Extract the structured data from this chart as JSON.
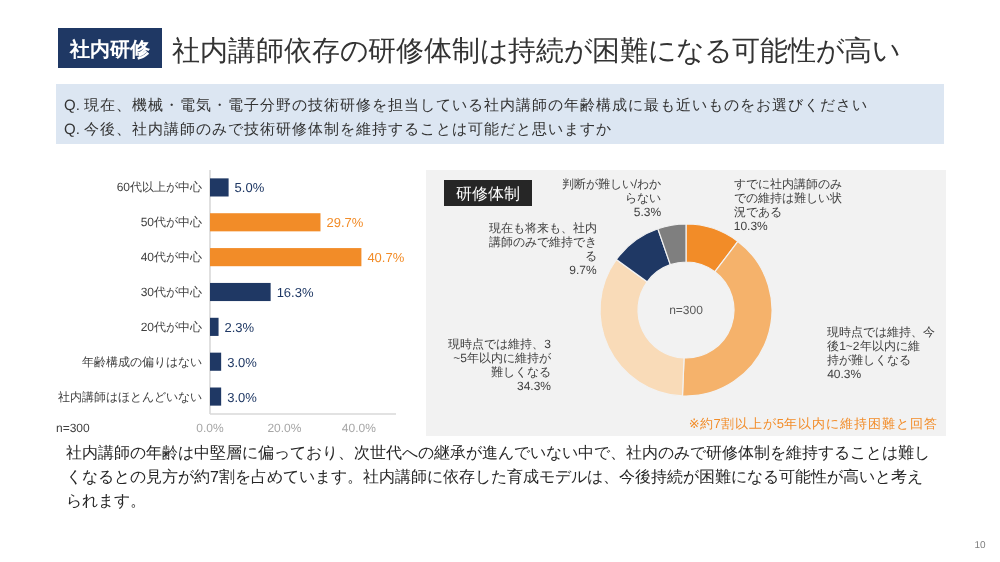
{
  "chart_data": [
    {
      "type": "bar",
      "orientation": "horizontal",
      "title": "社内講師依存の研修体制は持続が困難になる可能性が高い",
      "subtitle": "Q. 現在、機械・電気・電子分野の技術研修を担当している社内講師の年齢構成に最も近いものをお選びください",
      "annotations": [
        "社内研修",
        "n=300",
        "社内講師の年齢は中堅層に偏っており、次世代への継承が進んでいない中で、社内のみで研修体制を維持することは難しくなるとの見方が約7割を占めています。社内講師に依存した育成モデルは、今後持続が困難になる可能性が高いと考えられます。",
        "10",
        "Q. 今後、社内講師のみで技術研修体制を維持することは可能だと思いますか"
      ],
      "categories": [
        "60代以上が中心",
        "50代が中心",
        "40代が中心",
        "30代が中心",
        "20代が中心",
        "年齢構成の偏りはない",
        "社内講師はほとんどいない"
      ],
      "values": [
        5.0,
        29.7,
        40.7,
        16.3,
        2.3,
        3.0,
        3.0
      ],
      "colors": [
        "#1f3864",
        "#f28c28",
        "#f28c28",
        "#1f3864",
        "#1f3864",
        "#1f3864",
        "#1f3864"
      ],
      "value_labels": [
        "5.0%",
        "29.7%",
        "40.7%",
        "16.3%",
        "2.3%",
        "3.0%",
        "3.0%"
      ],
      "xlim": [
        0,
        50
      ],
      "xticks": [
        {
          "value": 0,
          "label": "0.0%"
        },
        {
          "value": 20,
          "label": "20.0%"
        },
        {
          "value": 40,
          "label": "40.0%"
        }
      ]
    },
    {
      "type": "donut",
      "title": "研修体制",
      "annotations": [
        "n=300",
        "※約7割以上が5年以内に維持困難と回答"
      ],
      "categories": [
        "すでに社内講師のみでの維持は難しい状況である",
        "現時点では維持、今後1~2年以内に維持が難しくなる",
        "現時点では維持、3~5年以内に維持が難しくなる",
        "現在も将来も、社内講師のみで維持できる",
        "判断が難しい/わからない"
      ],
      "values": [
        10.3,
        40.3,
        34.3,
        9.7,
        5.3
      ],
      "colors": [
        "#f28c28",
        "#f5b26b",
        "#f9dbb8",
        "#1f3864",
        "#7f7f7f"
      ],
      "value_labels": [
        "10.3%",
        "40.3%",
        "34.3%",
        "9.7%",
        "5.3%"
      ]
    }
  ]
}
